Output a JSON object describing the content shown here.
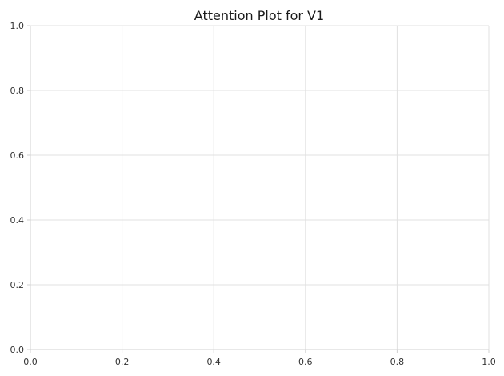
{
  "chart_data": {
    "type": "line",
    "title": "Attention Plot for V1",
    "xlabel": "",
    "ylabel": "",
    "xlim": [
      0,
      1
    ],
    "ylim": [
      0,
      1
    ],
    "x_ticks": [
      "0.0",
      "0.2",
      "0.4",
      "0.6",
      "0.8",
      "1.0"
    ],
    "y_ticks": [
      "0.0",
      "0.2",
      "0.4",
      "0.6",
      "0.8",
      "1.0"
    ],
    "grid": true,
    "series": []
  },
  "colors": {
    "grid": "#e0e0e0",
    "axis": "#d0d0d0",
    "text": "#333333",
    "title": "#1a1a1a"
  }
}
